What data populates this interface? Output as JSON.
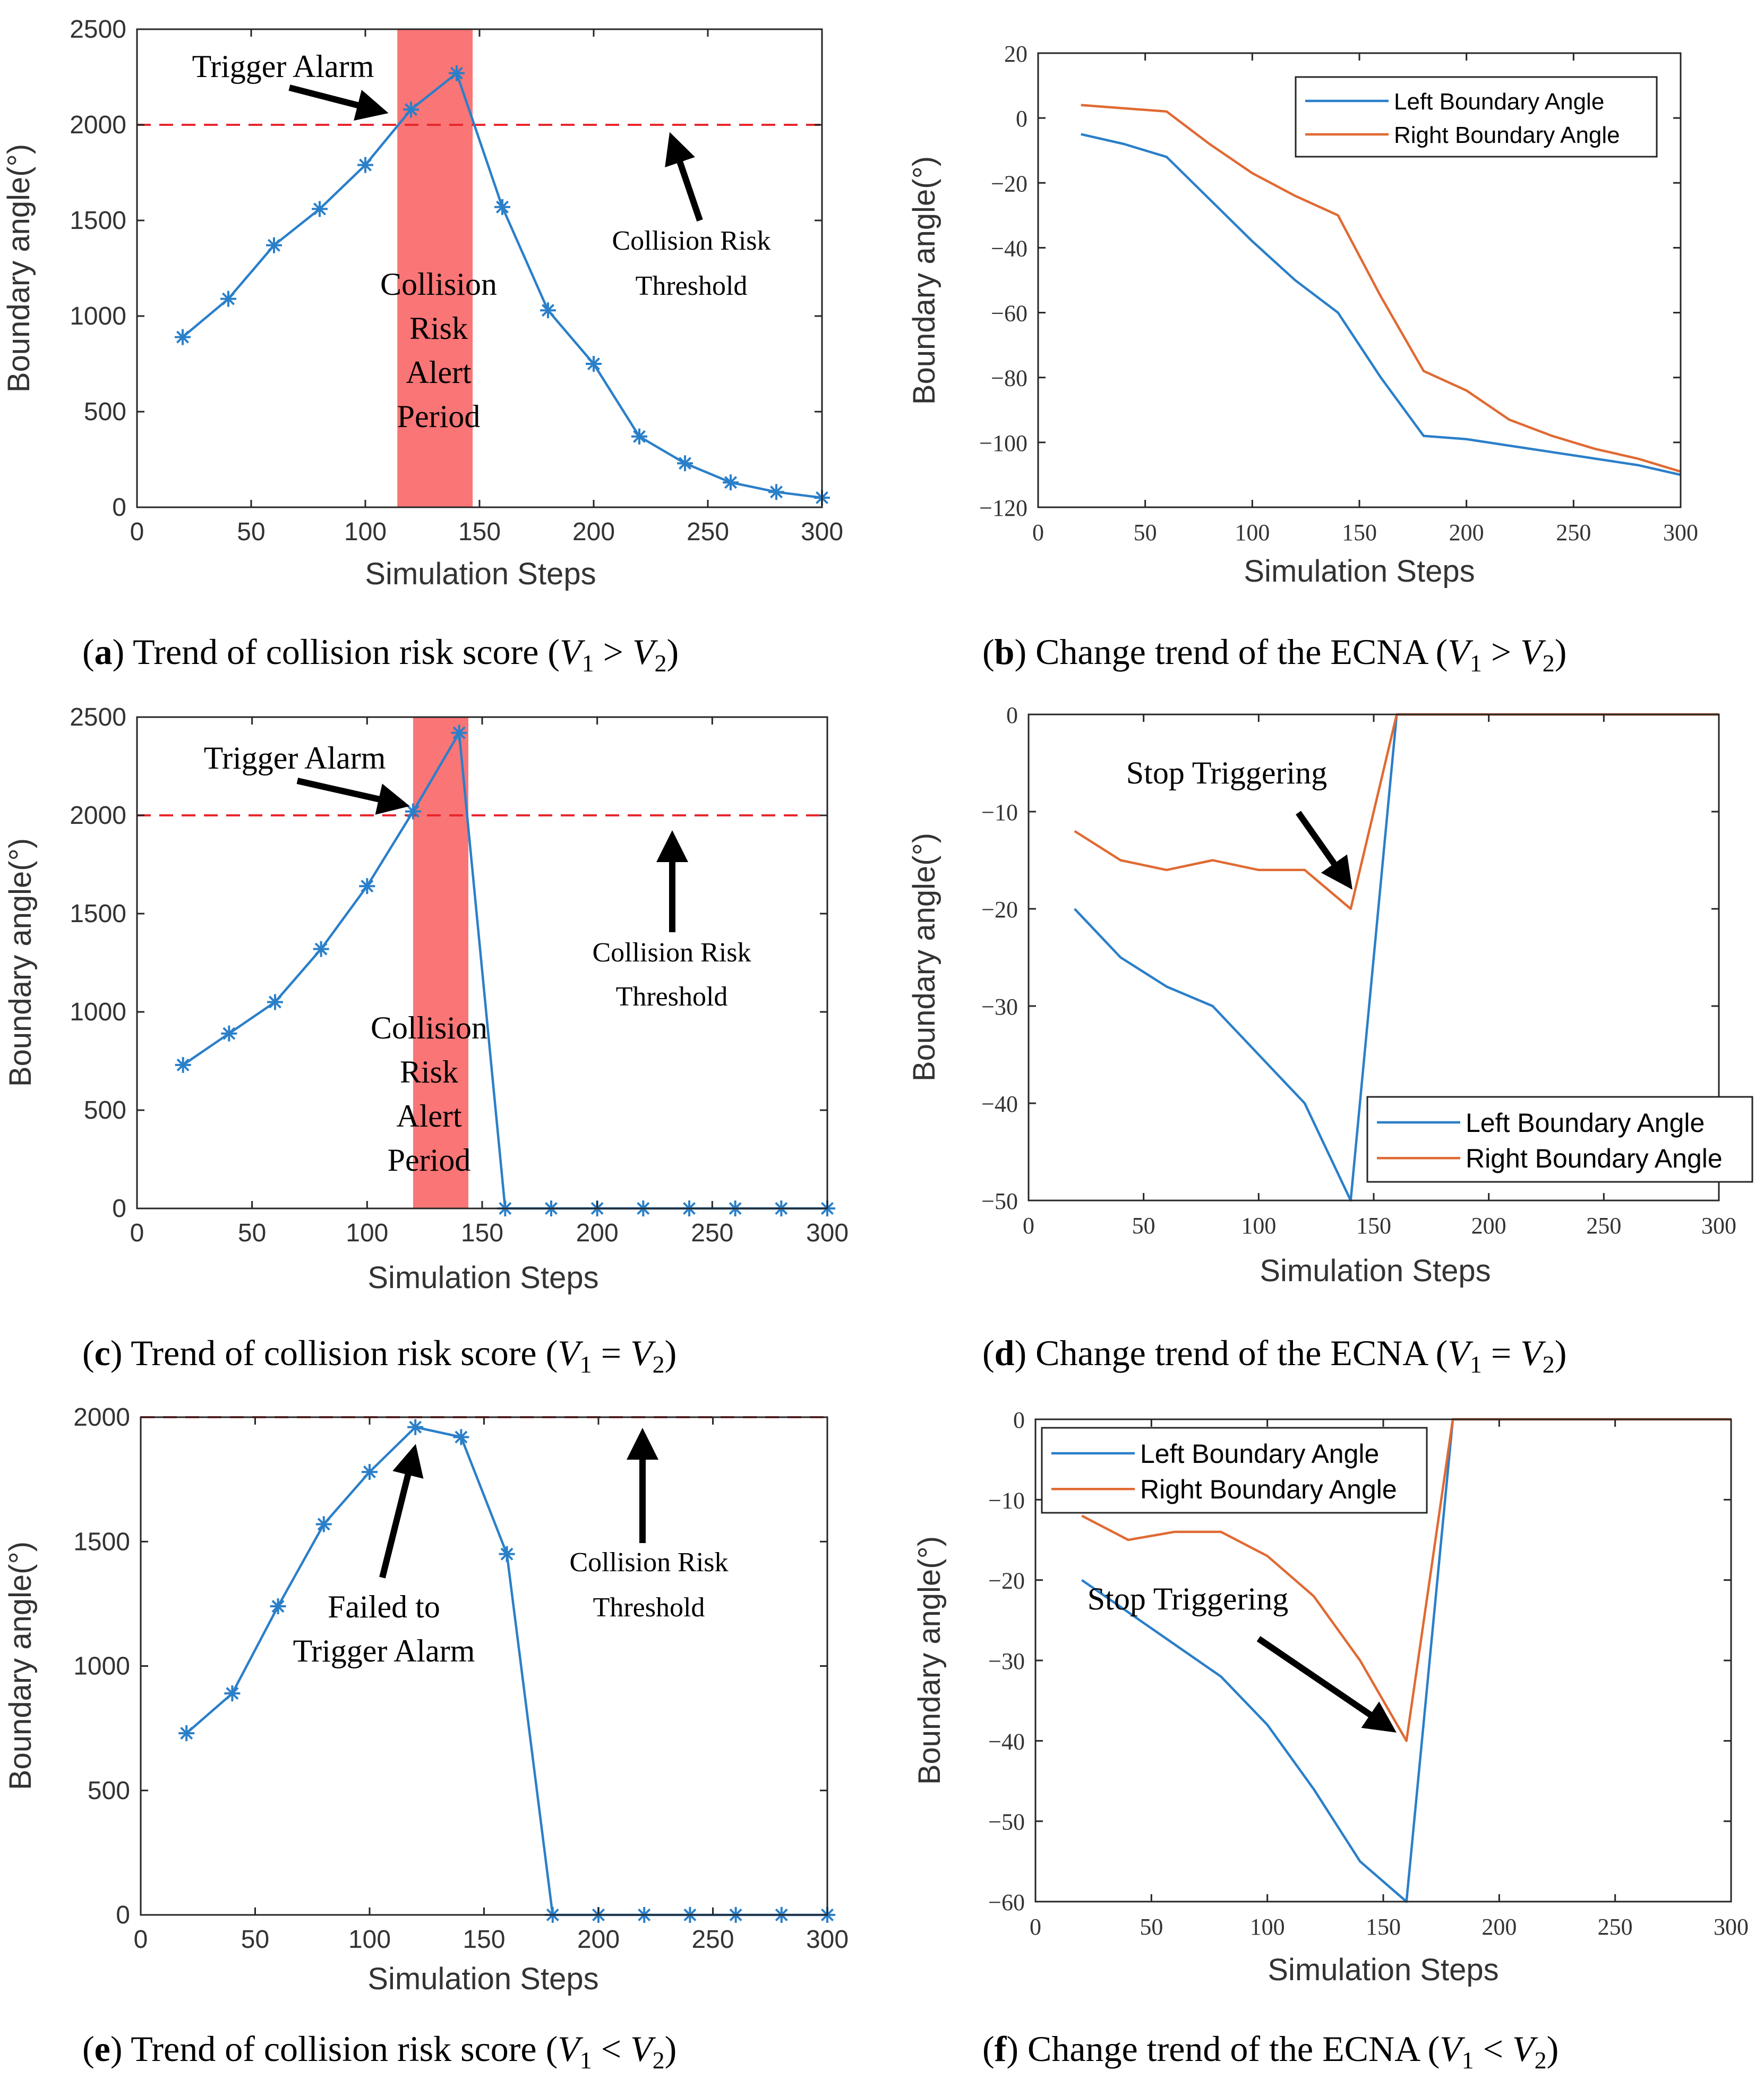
{
  "chart_data": [
    {
      "id": "a",
      "type": "line",
      "caption": {
        "letter": "a",
        "text": " Trend of collision risk score (",
        "rel": ">"
      },
      "xlabel": "Simulation Steps",
      "ylabel": "Boundary angle(°)",
      "xlim": [
        0,
        300
      ],
      "ylim": [
        0,
        2500
      ],
      "xticks": [
        "0",
        "50",
        "100",
        "150",
        "200",
        "250",
        "300"
      ],
      "yticks": [
        "0",
        "500",
        "1000",
        "1500",
        "2000",
        "2500"
      ],
      "series": [
        {
          "name": "Collision risk score",
          "color": "#2a7fc9",
          "marker": "*",
          "x": [
            20,
            40,
            60,
            80,
            100,
            120,
            140,
            160,
            180,
            200,
            220,
            240,
            260,
            280,
            300
          ],
          "y": [
            890,
            1090,
            1370,
            1560,
            1790,
            2080,
            2270,
            1570,
            1030,
            750,
            370,
            230,
            130,
            80,
            50
          ]
        }
      ],
      "threshold": {
        "value": 2000,
        "color": "#e8262d"
      },
      "alert_period": {
        "x": [
          114,
          147
        ],
        "color": "#fa7576"
      },
      "annotations": {
        "trigger_alarm": "Trigger Alarm",
        "threshold_label": [
          "Collision Risk",
          "Threshold"
        ],
        "alert_period": [
          "Collision",
          "Risk",
          "Alert",
          "Period"
        ]
      }
    },
    {
      "id": "b",
      "type": "line",
      "caption": {
        "letter": "b",
        "text": " Change trend of the ECNA (",
        "rel": ">"
      },
      "xlabel": "Simulation Steps",
      "ylabel": "Boundary angle(°)",
      "xlim": [
        0,
        300
      ],
      "ylim": [
        -120,
        20
      ],
      "xticks": [
        "0",
        "50",
        "100",
        "150",
        "200",
        "250",
        "300"
      ],
      "yticks": [
        "20",
        "0",
        "−20",
        "−40",
        "−60",
        "−80",
        "−100",
        "−120"
      ],
      "legend": "top-right",
      "series": [
        {
          "name": "Left Boundary Angle",
          "color": "#2a7fc9",
          "x": [
            20,
            40,
            60,
            80,
            100,
            120,
            140,
            160,
            180,
            200,
            220,
            240,
            260,
            280,
            300
          ],
          "y": [
            -5,
            -8,
            -12,
            -25,
            -38,
            -50,
            -60,
            -80,
            -98,
            -99,
            -101,
            -103,
            -105,
            -107,
            -110
          ]
        },
        {
          "name": "Right Boundary Angle",
          "color": "#e06a33",
          "x": [
            20,
            40,
            60,
            80,
            100,
            120,
            140,
            160,
            180,
            200,
            220,
            240,
            260,
            280,
            300
          ],
          "y": [
            4,
            3,
            2,
            -8,
            -17,
            -24,
            -30,
            -55,
            -78,
            -84,
            -93,
            -98,
            -102,
            -105,
            -109
          ]
        }
      ]
    },
    {
      "id": "c",
      "type": "line",
      "caption": {
        "letter": "c",
        "text": " Trend of collision risk score (",
        "rel": "="
      },
      "xlabel": "Simulation Steps",
      "ylabel": "Boundary angle(°)",
      "xlim": [
        0,
        300
      ],
      "ylim": [
        0,
        2500
      ],
      "xticks": [
        "0",
        "50",
        "100",
        "150",
        "200",
        "250",
        "300"
      ],
      "yticks": [
        "0",
        "500",
        "1000",
        "1500",
        "2000",
        "2500"
      ],
      "series": [
        {
          "name": "Collision risk score",
          "color": "#2a7fc9",
          "marker": "*",
          "x": [
            20,
            40,
            60,
            80,
            100,
            120,
            140,
            160,
            180,
            200,
            220,
            240,
            260,
            280,
            300
          ],
          "y": [
            730,
            890,
            1050,
            1320,
            1640,
            2020,
            2420,
            0,
            0,
            0,
            0,
            0,
            0,
            0,
            0
          ]
        }
      ],
      "threshold": {
        "value": 2000,
        "color": "#e8262d"
      },
      "alert_period": {
        "x": [
          120,
          144
        ],
        "color": "#fa7576"
      },
      "annotations": {
        "trigger_alarm": "Trigger Alarm",
        "threshold_label": [
          "Collision Risk",
          "Threshold"
        ],
        "alert_period": [
          "Collision",
          "Risk",
          "Alert",
          "Period"
        ]
      }
    },
    {
      "id": "d",
      "type": "line",
      "caption": {
        "letter": "d",
        "text": " Change trend of the ECNA (",
        "rel": "="
      },
      "xlabel": "Simulation Steps",
      "ylabel": "Boundary angle(°)",
      "xlim": [
        0,
        300
      ],
      "ylim": [
        -50,
        0
      ],
      "xticks": [
        "0",
        "50",
        "100",
        "150",
        "200",
        "250",
        "300"
      ],
      "yticks": [
        "0",
        "−10",
        "−20",
        "−30",
        "−40",
        "−50"
      ],
      "legend": "bottom-right",
      "series": [
        {
          "name": "Left Boundary Angle",
          "color": "#2a7fc9",
          "x": [
            20,
            40,
            60,
            80,
            100,
            120,
            140,
            160,
            180,
            200,
            220,
            240,
            260,
            280,
            300
          ],
          "y": [
            -20,
            -25,
            -28,
            -30,
            -35,
            -40,
            -50,
            0,
            0,
            0,
            0,
            0,
            0,
            0,
            0
          ]
        },
        {
          "name": "Right Boundary Angle",
          "color": "#e06a33",
          "x": [
            20,
            40,
            60,
            80,
            100,
            120,
            140,
            160,
            180,
            200,
            220,
            240,
            260,
            280,
            300
          ],
          "y": [
            -12,
            -15,
            -16,
            -15,
            -16,
            -16,
            -20,
            0,
            0,
            0,
            0,
            0,
            0,
            0,
            0
          ]
        }
      ],
      "annotations": {
        "stop": "Stop Triggering"
      }
    },
    {
      "id": "e",
      "type": "line",
      "caption": {
        "letter": "e",
        "text": " Trend of collision risk score (",
        "rel": "<"
      },
      "xlabel": "Simulation Steps",
      "ylabel": "Boundary angle(°)",
      "xlim": [
        0,
        300
      ],
      "ylim": [
        0,
        2000
      ],
      "xticks": [
        "0",
        "50",
        "100",
        "150",
        "200",
        "250",
        "300"
      ],
      "yticks": [
        "0",
        "500",
        "1000",
        "1500",
        "2000"
      ],
      "series": [
        {
          "name": "Collision risk score",
          "color": "#2a7fc9",
          "marker": "*",
          "x": [
            20,
            40,
            60,
            80,
            100,
            120,
            140,
            160,
            180,
            200,
            220,
            240,
            260,
            280,
            300
          ],
          "y": [
            730,
            890,
            1240,
            1570,
            1780,
            1960,
            1920,
            1450,
            0,
            0,
            0,
            0,
            0,
            0,
            0
          ]
        }
      ],
      "threshold": {
        "value": 2000,
        "color": "#e8262d"
      },
      "annotations": {
        "failed": [
          "Failed to",
          "Trigger Alarm"
        ],
        "threshold_label": [
          "Collision Risk",
          "Threshold"
        ]
      }
    },
    {
      "id": "f",
      "type": "line",
      "caption": {
        "letter": "f",
        "text": " Change trend of the ECNA (",
        "rel": "<"
      },
      "xlabel": "Simulation Steps",
      "ylabel": "Boundary angle(°)",
      "xlim": [
        0,
        300
      ],
      "ylim": [
        -60,
        0
      ],
      "xticks": [
        "0",
        "50",
        "100",
        "150",
        "200",
        "250",
        "300"
      ],
      "yticks": [
        "0",
        "−10",
        "−20",
        "−30",
        "−40",
        "−50",
        "−60"
      ],
      "legend": "top-left",
      "series": [
        {
          "name": "Left Boundary Angle",
          "color": "#2a7fc9",
          "x": [
            20,
            40,
            60,
            80,
            100,
            120,
            140,
            160,
            180,
            200,
            220,
            240,
            260,
            280,
            300
          ],
          "y": [
            -20,
            -24,
            -28,
            -32,
            -38,
            -46,
            -55,
            -60,
            0,
            0,
            0,
            0,
            0,
            0,
            0
          ]
        },
        {
          "name": "Right Boundary Angle",
          "color": "#e06a33",
          "x": [
            20,
            40,
            60,
            80,
            100,
            120,
            140,
            160,
            180,
            200,
            220,
            240,
            260,
            280,
            300
          ],
          "y": [
            -12,
            -15,
            -14,
            -14,
            -17,
            -22,
            -30,
            -40,
            0,
            0,
            0,
            0,
            0,
            0,
            0
          ]
        }
      ],
      "annotations": {
        "stop": "Stop Triggering"
      }
    }
  ]
}
